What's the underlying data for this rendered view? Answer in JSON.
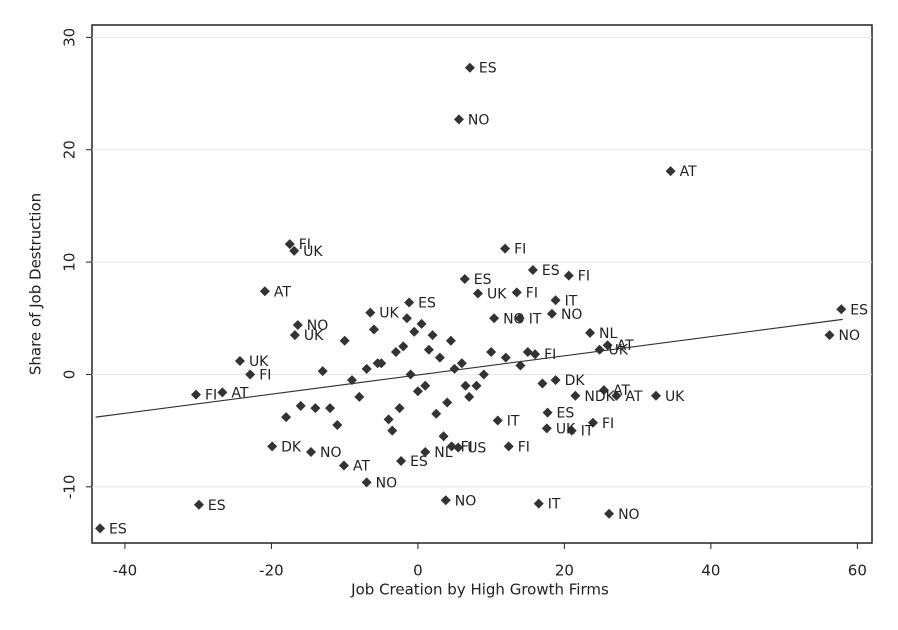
{
  "chart_data": {
    "type": "scatter",
    "xlabel": "Job Creation by High Growth Firms",
    "ylabel": "Share of Job Destruction",
    "xlim": [
      -44.5,
      62
    ],
    "ylim": [
      -15,
      31.1
    ],
    "xticks": [
      -40,
      -20,
      0,
      20,
      40,
      60
    ],
    "yticks": [
      -10,
      0,
      10,
      20,
      30
    ],
    "grid": true,
    "color": "#333333",
    "x": [
      7.1,
      5.6,
      34.5,
      -17.5,
      -16.9,
      11.9,
      -20.9,
      15.7,
      20.6,
      6.4,
      13.5,
      8.2,
      18.8,
      -1.2,
      18.3,
      -16.4,
      -16.8,
      10.4,
      13.9,
      -6.5,
      23.5,
      25.9,
      24.8,
      16.0,
      -24.3,
      -22.9,
      57.8,
      56.2,
      -30.3,
      -26.7,
      18.8,
      25.4,
      27.1,
      32.5,
      21.5,
      17.7,
      23.9,
      21.0,
      17.6,
      12.4,
      5.5,
      4.6,
      -19.9,
      -14.6,
      -10.1,
      -2.3,
      1.0,
      -7.0,
      3.8,
      16.5,
      26.1,
      -29.9,
      -43.4,
      10.9,
      -5,
      -3,
      -1,
      1,
      3,
      5,
      -8,
      -10,
      -12,
      -6,
      -4,
      -2,
      0,
      2,
      4,
      6,
      8,
      10,
      -9,
      -7,
      -3.5,
      -1.5,
      0.5,
      2.5,
      4.5,
      7,
      9,
      12,
      -14,
      -11,
      -5.5,
      -2.5,
      1.5,
      3.5,
      6.5,
      -0.5,
      14,
      -13,
      -16,
      -18,
      15,
      17
    ],
    "values": [
      27.3,
      22.7,
      18.1,
      11.6,
      11.0,
      11.2,
      7.4,
      9.3,
      8.8,
      8.5,
      7.3,
      7.2,
      6.6,
      6.4,
      5.4,
      4.4,
      3.5,
      5.0,
      5.0,
      5.5,
      3.7,
      2.6,
      2.2,
      1.8,
      1.2,
      0.0,
      5.8,
      3.5,
      -1.8,
      -1.6,
      -0.5,
      -1.4,
      -1.9,
      -1.9,
      -1.9,
      -3.4,
      -4.3,
      -5.0,
      -4.8,
      -6.4,
      -6.5,
      -6.4,
      -6.4,
      -6.9,
      -8.1,
      -7.7,
      -6.9,
      -9.6,
      -11.2,
      -11.5,
      -12.4,
      -11.6,
      -13.7,
      -4.1,
      1,
      2,
      0,
      -1,
      1.5,
      0.5,
      -2,
      3,
      -3,
      4,
      -4,
      2.5,
      -1.5,
      3.5,
      -2.5,
      1,
      -1,
      2,
      -0.5,
      0.5,
      -5,
      5,
      4.5,
      -3.5,
      3,
      -2,
      0,
      1.5,
      -3,
      -4.5,
      1,
      -3,
      2.2,
      -5.5,
      -1,
      3.8,
      0.8,
      0.3,
      -2.8,
      -3.8,
      2,
      -0.8
    ],
    "point_labels": [
      "ES",
      "NO",
      "AT",
      "FI",
      "UK",
      "FI",
      "AT",
      "ES",
      "FI",
      "ES",
      "FI",
      "UK",
      "IT",
      "ES",
      "NO",
      "NO",
      "UK",
      "NO",
      "IT",
      "UK",
      "NL",
      "AT",
      "UK",
      "FI",
      "UK",
      "FI",
      "ES",
      "NO",
      "FI",
      "AT",
      "DK",
      "AT",
      "AT",
      "UK",
      "NDK",
      "ES",
      "FI",
      "IT",
      "UK",
      "FI",
      "US",
      "FI",
      "DK",
      "NO",
      "AT",
      "ES",
      "NL",
      "NO",
      "NO",
      "IT",
      "NO",
      "ES",
      "ES",
      "IT",
      null,
      null,
      null,
      null,
      null,
      null,
      null,
      null,
      null,
      null,
      null,
      null,
      null,
      null,
      null,
      null,
      null,
      null,
      null,
      null,
      null,
      null,
      null,
      null,
      null,
      null,
      null,
      null,
      null,
      null,
      null,
      null,
      null,
      null,
      null,
      null,
      null,
      null,
      null,
      null,
      null,
      null
    ],
    "fit": {
      "x": [
        -44,
        58
      ],
      "values": [
        -3.8,
        4.9
      ],
      "color": "#333333"
    }
  }
}
